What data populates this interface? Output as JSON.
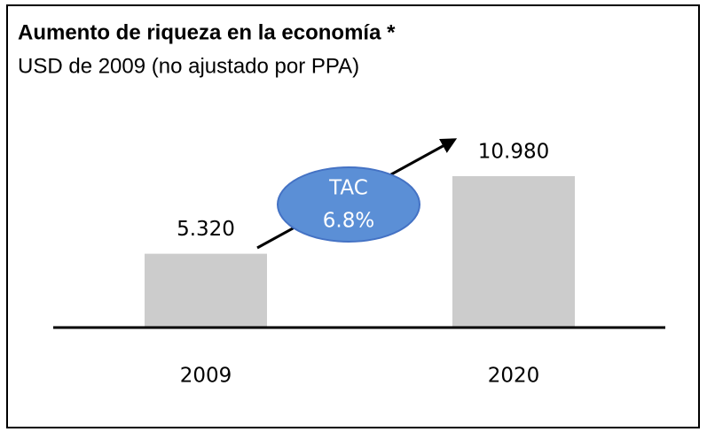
{
  "chart_data": {
    "type": "bar",
    "title": "Aumento de riqueza en la economía *",
    "subtitle": "USD de 2009 (no ajustado por PPA)",
    "categories": [
      "2009",
      "2020"
    ],
    "values": [
      5320,
      10980
    ],
    "value_labels": [
      "5.320",
      "10.980"
    ],
    "color": "#cccccc",
    "annotation": [
      "TAC",
      "6.8%"
    ]
  }
}
